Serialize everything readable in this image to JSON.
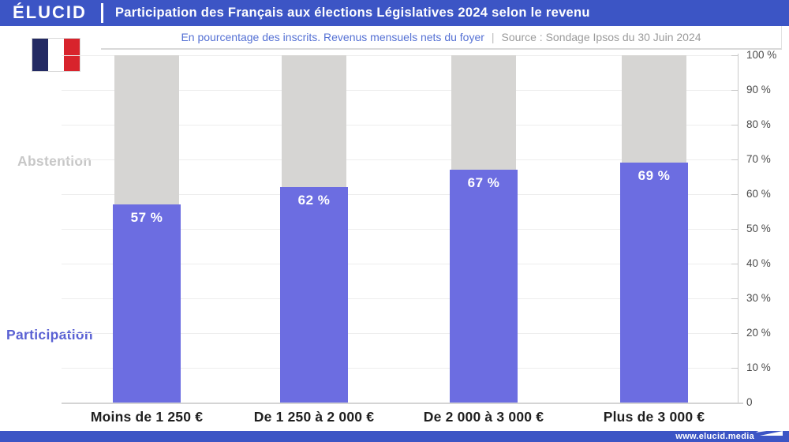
{
  "header": {
    "logo": "ÉLUCID",
    "title": "Participation des Français aux élections Législatives 2024 selon le revenu"
  },
  "subtitle": {
    "main": "En pourcentage des inscrits. Revenus mensuels nets du foyer",
    "separator": "|",
    "source": "Source : Sondage Ipsos du 30 Juin 2024"
  },
  "labels": {
    "abstention": "Abstention",
    "participation": "Participation"
  },
  "footer": {
    "url": "www.elucid.media"
  },
  "colors": {
    "accent_blue": "#3c55c5",
    "bar_participation": "#6c6de1",
    "bar_abstention": "#d6d5d3",
    "flag_navy": "#232a63",
    "flag_white": "#ffffff",
    "flag_red": "#d8232c"
  },
  "chart_data": {
    "type": "bar",
    "stacked": true,
    "title": "Participation des Français aux élections Législatives 2024 selon le revenu",
    "subtitle": "En pourcentage des inscrits. Revenus mensuels nets du foyer",
    "source": "Source : Sondage Ipsos du 30 Juin 2024",
    "categories": [
      "Moins de 1 250 €",
      "De 1 250 à 2 000 €",
      "De 2 000 à 3 000 €",
      "Plus de 3 000 €"
    ],
    "series": [
      {
        "name": "Participation",
        "values": [
          57,
          62,
          67,
          69
        ],
        "color": "#6c6de1"
      },
      {
        "name": "Abstention",
        "values": [
          43,
          38,
          33,
          31
        ],
        "color": "#d6d5d3"
      }
    ],
    "value_labels": [
      "57 %",
      "62 %",
      "67 %",
      "69 %"
    ],
    "y_ticks": [
      "100 %",
      "90 %",
      "80 %",
      "70 %",
      "60 %",
      "50 %",
      "40 %",
      "30 %",
      "20 %",
      "10 %",
      "0"
    ],
    "ylim": [
      0,
      100
    ],
    "grid": true,
    "legend_position": "left-side-labels",
    "axis_side": "right"
  }
}
